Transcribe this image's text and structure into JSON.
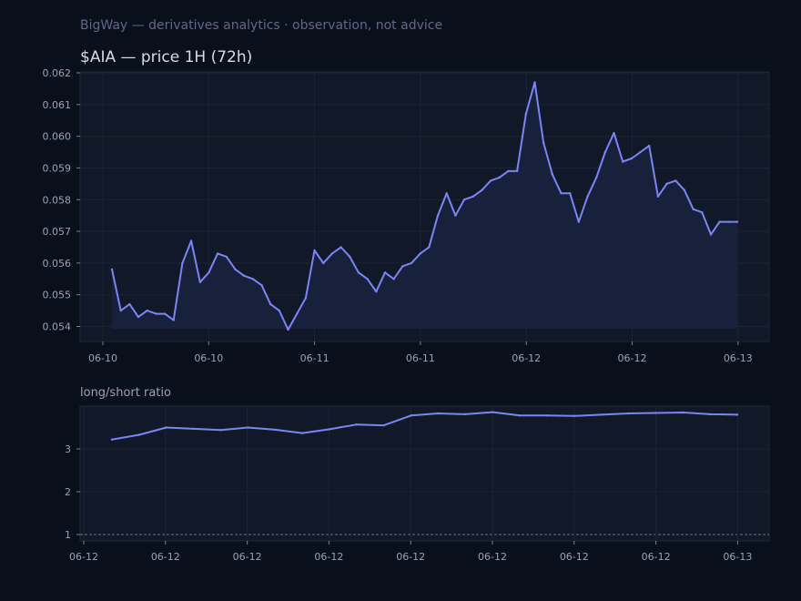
{
  "header": {
    "subtitle": "BigWay — derivatives analytics · observation, not advice",
    "title": "$AIA — price 1H (72h)"
  },
  "colors": {
    "background": "#0a0f1c",
    "panel": "#111827",
    "line": "#7b85f5",
    "area": "#1a2340",
    "grid": "#1b2436",
    "tick_text": "#9aa2b6"
  },
  "chart_data": [
    {
      "type": "area",
      "title": "$AIA — price 1H (72h)",
      "xlabel": "",
      "ylabel": "",
      "ylim": [
        0.0535,
        0.062
      ],
      "grid": true,
      "y_ticks": [
        "0.054",
        "0.055",
        "0.056",
        "0.057",
        "0.058",
        "0.059",
        "0.060",
        "0.061",
        "0.062"
      ],
      "x_ticks": [
        "06-10",
        "06-10",
        "06-11",
        "06-11",
        "06-12",
        "06-12",
        "06-13"
      ],
      "series": [
        {
          "values": [
            0.0558,
            0.0545,
            0.0547,
            0.0543,
            0.0545,
            0.0544,
            0.0544,
            0.0542,
            0.056,
            0.0567,
            0.0554,
            0.0557,
            0.0563,
            0.0562,
            0.0558,
            0.0556,
            0.0555,
            0.0553,
            0.0547,
            0.0545,
            0.0539,
            0.0544,
            0.0549,
            0.0564,
            0.056,
            0.0563,
            0.0565,
            0.0562,
            0.0557,
            0.0555,
            0.0551,
            0.0557,
            0.0555,
            0.0559,
            0.056,
            0.0563,
            0.0565,
            0.0575,
            0.0582,
            0.0575,
            0.058,
            0.0581,
            0.0583,
            0.0586,
            0.0587,
            0.0589,
            0.0589,
            0.0607,
            0.0617,
            0.0598,
            0.0588,
            0.0582,
            0.0582,
            0.0573,
            0.0581,
            0.0587,
            0.0595,
            0.0601,
            0.0592,
            0.0593,
            0.0595,
            0.0597,
            0.0581,
            0.0585,
            0.0586,
            0.0583,
            0.0577,
            0.0576,
            0.0569,
            0.0573,
            0.0573,
            0.0573
          ]
        }
      ]
    },
    {
      "type": "line",
      "title": "long/short ratio",
      "xlabel": "",
      "ylabel": "",
      "ylim": [
        0.9,
        3.95
      ],
      "grid": true,
      "reference_line": 1,
      "y_ticks": [
        "1",
        "2",
        "3"
      ],
      "x_ticks": [
        "06-12",
        "06-12",
        "06-12",
        "06-12",
        "06-12",
        "06-12",
        "06-12",
        "06-12",
        "06-13"
      ],
      "series": [
        {
          "values": [
            3.22,
            3.33,
            3.5,
            3.47,
            3.44,
            3.5,
            3.45,
            3.37,
            3.46,
            3.57,
            3.55,
            3.78,
            3.83,
            3.81,
            3.86,
            3.78,
            3.78,
            3.77,
            3.8,
            3.83,
            3.84,
            3.85,
            3.81,
            3.8
          ]
        }
      ]
    }
  ]
}
